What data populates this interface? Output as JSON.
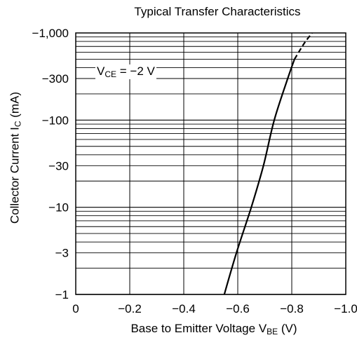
{
  "chart_data": {
    "type": "line",
    "title": "Typical Transfer Characteristics",
    "xlabel": {
      "main": "Base to Emitter Voltage  V",
      "sub": "BE",
      "unit": "  (V)"
    },
    "ylabel": {
      "main": "Collector Current  I",
      "sub": "C",
      "unit": "  (mA)"
    },
    "x_scale": "linear",
    "y_scale": "log",
    "xlim": [
      0,
      -1.0
    ],
    "ylim": [
      -1,
      -1000
    ],
    "x_ticks": [
      0,
      -0.2,
      -0.4,
      -0.6,
      -0.8,
      -1.0
    ],
    "x_tick_labels": [
      "0",
      "−0.2",
      "−0.4",
      "−0.6",
      "−0.8",
      "−1.0"
    ],
    "y_ticks": [
      -1,
      -3,
      -10,
      -30,
      -100,
      -300,
      -1000
    ],
    "y_tick_labels": [
      "−1",
      "−3",
      "−10",
      "−30",
      "−100",
      "−300",
      "−1,000"
    ],
    "grid": true,
    "annotation": {
      "main": "V",
      "sub": "CE",
      "rest": " = −2 V"
    },
    "series": [
      {
        "style": "solid",
        "points": [
          {
            "x": -0.55,
            "y": -1
          },
          {
            "x": -0.595,
            "y": -3
          },
          {
            "x": -0.65,
            "y": -10
          },
          {
            "x": -0.695,
            "y": -30
          },
          {
            "x": -0.735,
            "y": -100
          },
          {
            "x": -0.785,
            "y": -300
          },
          {
            "x": -0.81,
            "y": -500
          }
        ]
      },
      {
        "style": "dashed",
        "points": [
          {
            "x": -0.81,
            "y": -500
          },
          {
            "x": -0.845,
            "y": -750
          },
          {
            "x": -0.875,
            "y": -1000
          }
        ]
      }
    ]
  }
}
